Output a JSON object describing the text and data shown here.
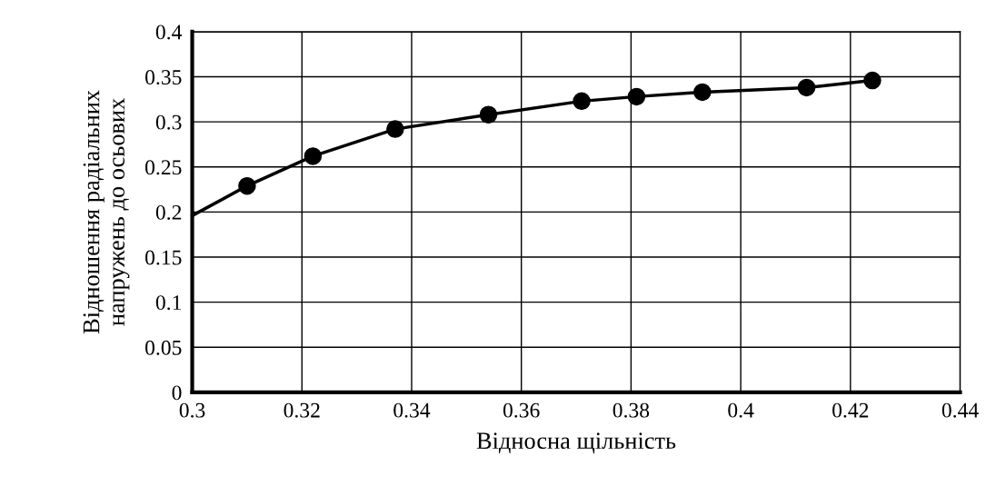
{
  "chart_data": {
    "type": "line",
    "xlabel": "Відносна щільність",
    "ylabel": "Відношення радіальних\nнапружень до осьових",
    "series": [
      {
        "color": "#000000",
        "marker": "none",
        "line_style": "solid",
        "x": [
          0.3,
          0.31,
          0.322,
          0.337,
          0.354,
          0.371,
          0.381,
          0.393,
          0.412,
          0.424
        ],
        "values": [
          0.196,
          0.229,
          0.262,
          0.292,
          0.308,
          0.323,
          0.328,
          0.333,
          0.338,
          0.346
        ]
      },
      {
        "type": "scatter",
        "color": "#000000",
        "marker": "circle",
        "x": [
          0.31,
          0.322,
          0.337,
          0.354,
          0.371,
          0.381,
          0.393,
          0.412,
          0.424
        ],
        "values": [
          0.229,
          0.262,
          0.292,
          0.308,
          0.323,
          0.328,
          0.333,
          0.338,
          0.346
        ]
      }
    ],
    "xlim": [
      0.3,
      0.44
    ],
    "xticks": [
      0.3,
      0.32,
      0.34,
      0.36,
      0.38,
      0.4,
      0.42,
      0.44
    ],
    "ylim": [
      0,
      0.4
    ],
    "yticks": [
      0,
      0.05,
      0.1,
      0.15,
      0.2,
      0.25,
      0.3,
      0.35,
      0.4
    ],
    "grid": true,
    "legend": false
  }
}
